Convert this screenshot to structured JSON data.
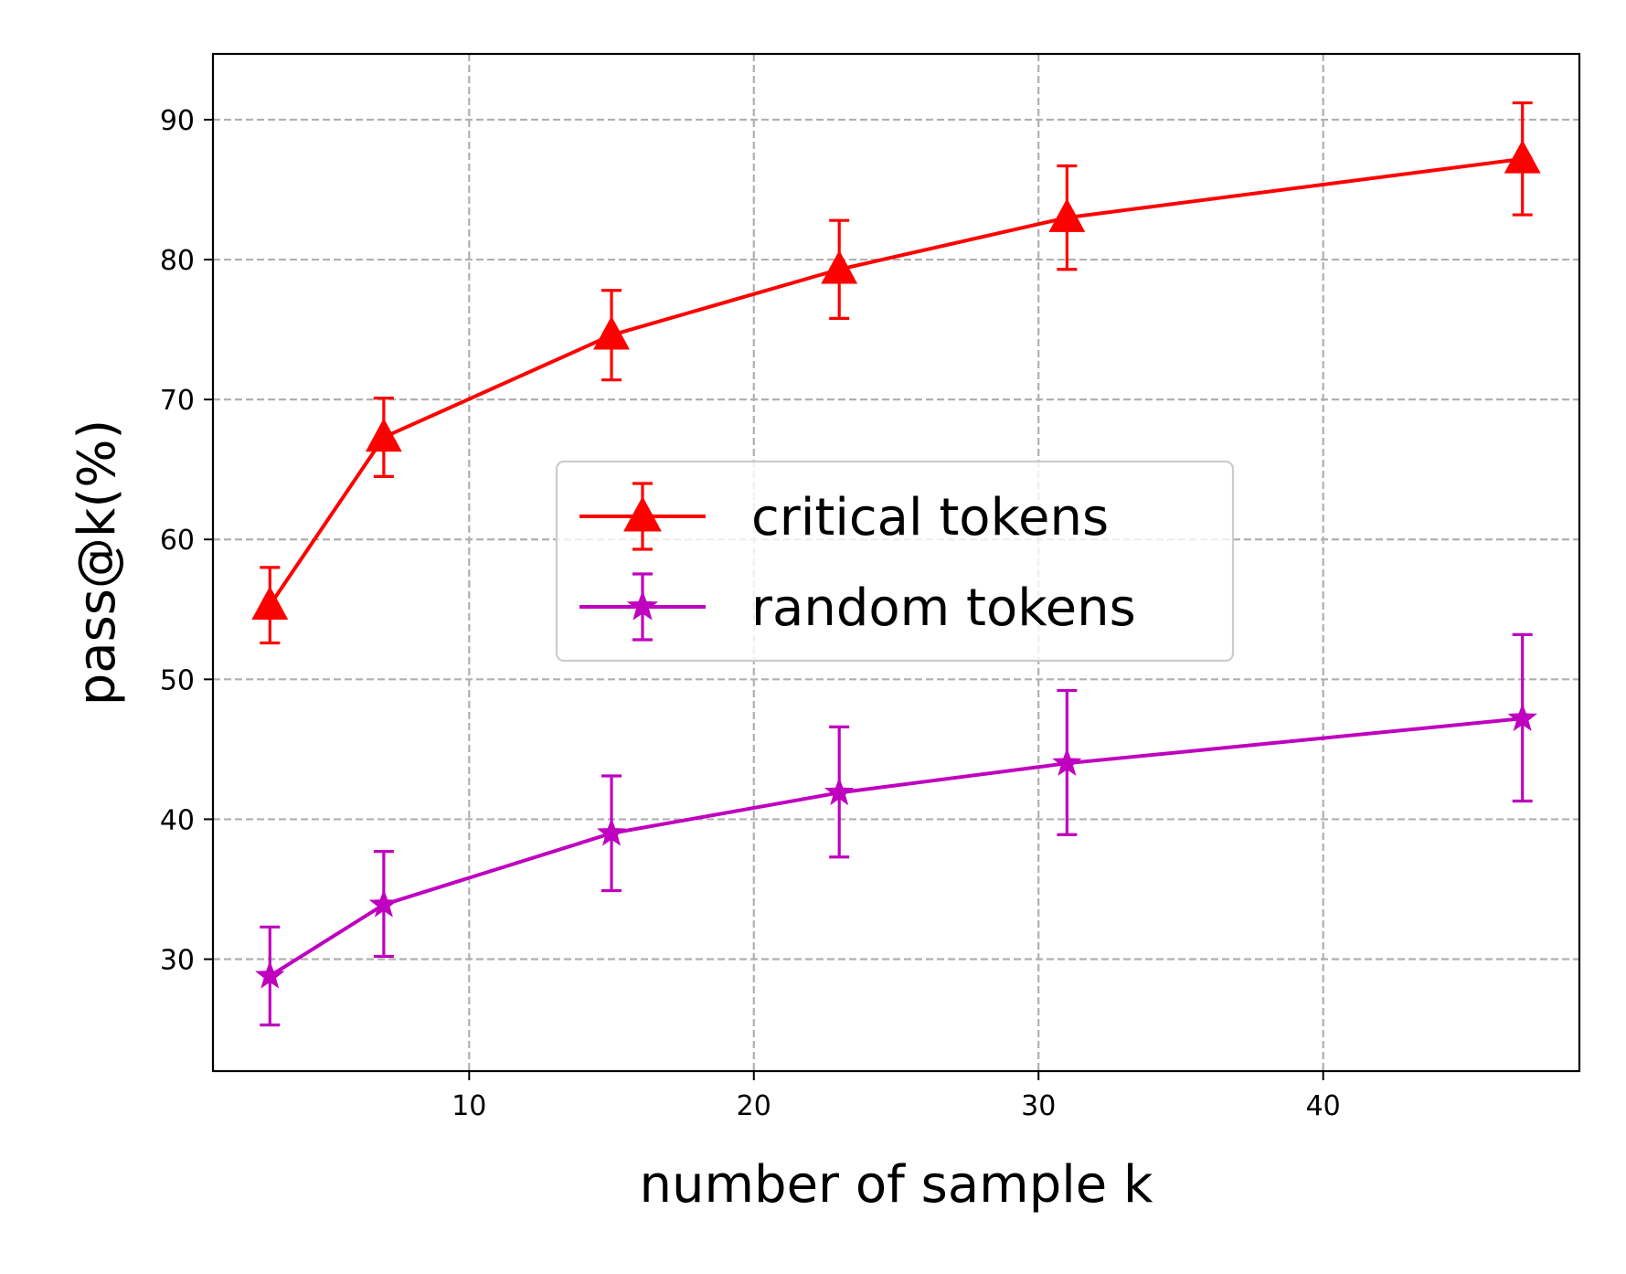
{
  "chart_data": {
    "type": "line",
    "xlabel": "number of sample k",
    "ylabel": "pass@k(%)",
    "xlim": [
      1,
      49
    ],
    "ylim": [
      22,
      94.7
    ],
    "xticks": [
      10,
      20,
      30,
      40
    ],
    "yticks": [
      30,
      40,
      50,
      60,
      70,
      80,
      90
    ],
    "grid": true,
    "legend_position": "center",
    "series": [
      {
        "name": "critical tokens",
        "color": "#ff0000",
        "marker": "triangle",
        "x": [
          3,
          7,
          15,
          23,
          31,
          47
        ],
        "y": [
          55.3,
          67.3,
          74.6,
          79.3,
          83.0,
          87.2
        ],
        "err_low": [
          52.6,
          64.5,
          71.4,
          75.8,
          79.3,
          83.2
        ],
        "err_high": [
          58.0,
          70.1,
          77.8,
          82.8,
          86.7,
          91.2
        ]
      },
      {
        "name": "random tokens",
        "color": "#bf00bf",
        "marker": "star",
        "x": [
          3,
          7,
          15,
          23,
          31,
          47
        ],
        "y": [
          28.8,
          33.9,
          39.0,
          41.9,
          44.0,
          47.2
        ],
        "err_low": [
          25.3,
          30.2,
          34.9,
          37.3,
          38.9,
          41.3
        ],
        "err_high": [
          32.3,
          37.7,
          43.1,
          46.6,
          49.2,
          53.2
        ]
      }
    ]
  }
}
